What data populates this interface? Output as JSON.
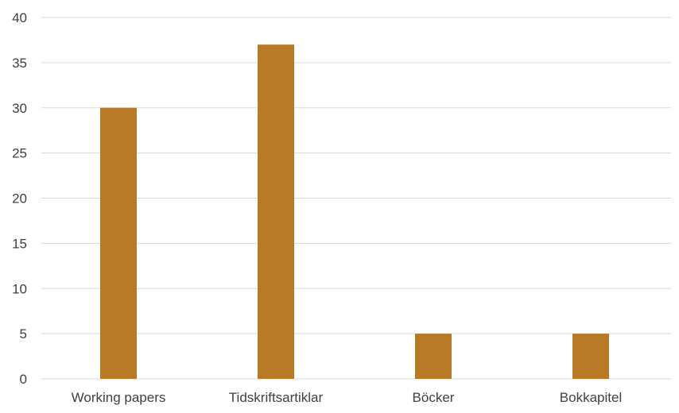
{
  "chart_data": {
    "type": "bar",
    "categories": [
      "Working papers",
      "Tidskriftsartiklar",
      "Böcker",
      "Bokkapitel"
    ],
    "values": [
      30,
      37,
      5,
      5
    ],
    "ylim": [
      0,
      40
    ],
    "yticks": [
      0,
      5,
      10,
      15,
      20,
      25,
      30,
      35,
      40
    ],
    "grid": true,
    "legend": "none",
    "colors": {
      "bar": "#B87A27",
      "grid": "#D9D9D9",
      "text": "#404040"
    }
  }
}
